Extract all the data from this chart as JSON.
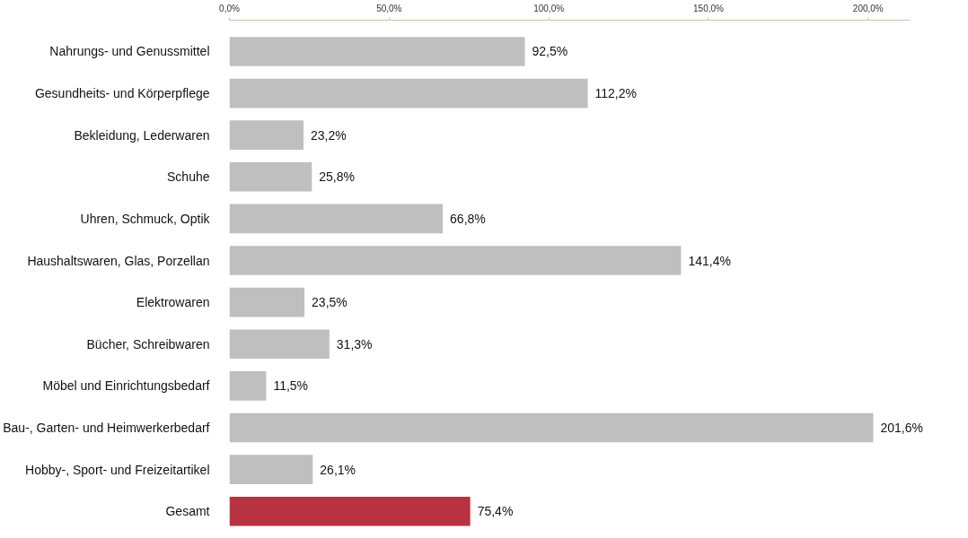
{
  "chart_data": {
    "type": "bar",
    "orientation": "horizontal",
    "categories": [
      "Nahrungs- und Genussmittel",
      "Gesundheits- und Körperpflege",
      "Bekleidung, Lederwaren",
      "Schuhe",
      "Uhren, Schmuck, Optik",
      "Haushaltswaren, Glas, Porzellan",
      "Elektrowaren",
      "Bücher, Schreibwaren",
      "Möbel und Einrichtungsbedarf",
      "Bau-, Garten- und Heimwerkerbedarf",
      "Hobby-, Sport- und Freizeitartikel",
      "Gesamt"
    ],
    "values": [
      92.5,
      112.2,
      23.2,
      25.8,
      66.8,
      141.4,
      23.5,
      31.3,
      11.5,
      201.6,
      26.1,
      75.4
    ],
    "colors": [
      "#bfbfbf",
      "#bfbfbf",
      "#bfbfbf",
      "#bfbfbf",
      "#bfbfbf",
      "#bfbfbf",
      "#bfbfbf",
      "#bfbfbf",
      "#bfbfbf",
      "#bfbfbf",
      "#bfbfbf",
      "#b8333f"
    ],
    "value_labels": [
      "92,5%",
      "112,2%",
      "23,2%",
      "25,8%",
      "66,8%",
      "141,4%",
      "23,5%",
      "31,3%",
      "11,5%",
      "201,6%",
      "26,1%",
      "75,4%"
    ],
    "xlim": [
      0,
      213
    ],
    "xticks": [
      {
        "value": 0,
        "label": "0,0%"
      },
      {
        "value": 50,
        "label": "50,0%"
      },
      {
        "value": 100,
        "label": "100,0%"
      },
      {
        "value": 150,
        "label": "150,0%"
      },
      {
        "value": 200,
        "label": "200,0%"
      }
    ],
    "grid": false
  }
}
